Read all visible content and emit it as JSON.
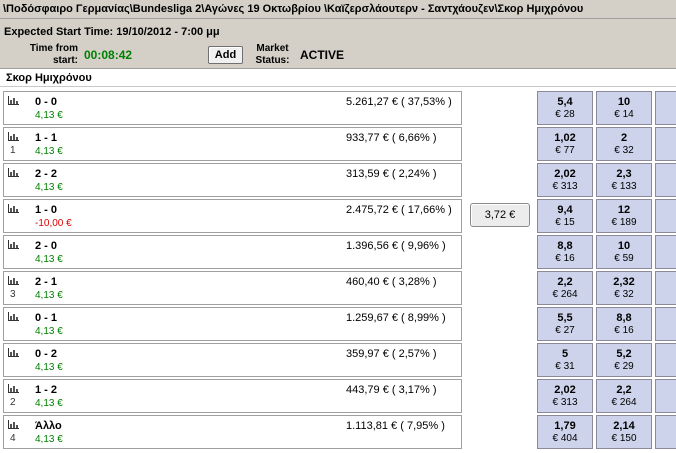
{
  "window": {
    "path": "\\Ποδόσφαιρο Γερμανίας\\Bundesliga 2\\Αγώνες 19 Οκτωβρίου  \\Καϊζερσλάουτερν - Σαντχάουζεν\\Σκορ Ημιχρόνου"
  },
  "info": {
    "expected_start": "Expected Start Time: 19/10/2012 - 7:00 μμ",
    "time_from_start_label": "Time from start:",
    "timer": "00:08:42",
    "add_label": "Add",
    "market_status_label": "Market Status:",
    "market_status": "ACTIVE"
  },
  "market": {
    "name": "Σκορ Ημιχρόνου"
  },
  "mid_button": {
    "label": "3,72 €"
  },
  "runners": [
    {
      "name": "0 - 0",
      "num": "",
      "pl": "4,13 €",
      "pl_sign": "pos",
      "matched": "5.261,27 € ( 37,53% )",
      "back": {
        "price": "5,4",
        "size": "€ 28"
      },
      "lay": {
        "price": "10",
        "size": "€ 14"
      }
    },
    {
      "name": "1 - 1",
      "num": "1",
      "pl": "4,13 €",
      "pl_sign": "pos",
      "matched": "933,77 € ( 6,66% )",
      "back": {
        "price": "1,02",
        "size": "€ 77"
      },
      "lay": {
        "price": "2",
        "size": "€ 32"
      }
    },
    {
      "name": "2 - 2",
      "num": "",
      "pl": "4,13 €",
      "pl_sign": "pos",
      "matched": "313,59 € ( 2,24% )",
      "back": {
        "price": "2,02",
        "size": "€ 313"
      },
      "lay": {
        "price": "2,3",
        "size": "€ 133"
      }
    },
    {
      "name": "1 - 0",
      "num": "",
      "pl": "-10,00 €",
      "pl_sign": "neg",
      "matched": "2.475,72 € ( 17,66% )",
      "back": {
        "price": "9,4",
        "size": "€ 15"
      },
      "lay": {
        "price": "12",
        "size": "€ 189"
      }
    },
    {
      "name": "2 - 0",
      "num": "",
      "pl": "4,13 €",
      "pl_sign": "pos",
      "matched": "1.396,56 € ( 9,96% )",
      "back": {
        "price": "8,8",
        "size": "€ 16"
      },
      "lay": {
        "price": "10",
        "size": "€ 59"
      }
    },
    {
      "name": "2 - 1",
      "num": "3",
      "pl": "4,13 €",
      "pl_sign": "pos",
      "matched": "460,40 € ( 3,28% )",
      "back": {
        "price": "2,2",
        "size": "€ 264"
      },
      "lay": {
        "price": "2,32",
        "size": "€ 32"
      }
    },
    {
      "name": "0 - 1",
      "num": "",
      "pl": "4,13 €",
      "pl_sign": "pos",
      "matched": "1.259,67 € ( 8,99% )",
      "back": {
        "price": "5,5",
        "size": "€ 27"
      },
      "lay": {
        "price": "8,8",
        "size": "€ 16"
      }
    },
    {
      "name": "0 - 2",
      "num": "",
      "pl": "4,13 €",
      "pl_sign": "pos",
      "matched": "359,97 € ( 2,57% )",
      "back": {
        "price": "5",
        "size": "€ 31"
      },
      "lay": {
        "price": "5,2",
        "size": "€ 29"
      }
    },
    {
      "name": "1 - 2",
      "num": "2",
      "pl": "4,13 €",
      "pl_sign": "pos",
      "matched": "443,79 € ( 3,17% )",
      "back": {
        "price": "2,02",
        "size": "€ 313"
      },
      "lay": {
        "price": "2,2",
        "size": "€ 264"
      }
    },
    {
      "name": "Άλλο",
      "num": "4",
      "pl": "4,13 €",
      "pl_sign": "pos",
      "matched": "1.113,81 € ( 7,95% )",
      "back": {
        "price": "1,79",
        "size": "€ 404"
      },
      "lay": {
        "price": "2,14",
        "size": "€ 150"
      }
    }
  ],
  "icons": {
    "runner_chart": "bar-chart-icon"
  },
  "colors": {
    "profit": "#008000",
    "loss": "#e00000",
    "timer": "#008000",
    "price_cell": "#cdd3ea"
  }
}
